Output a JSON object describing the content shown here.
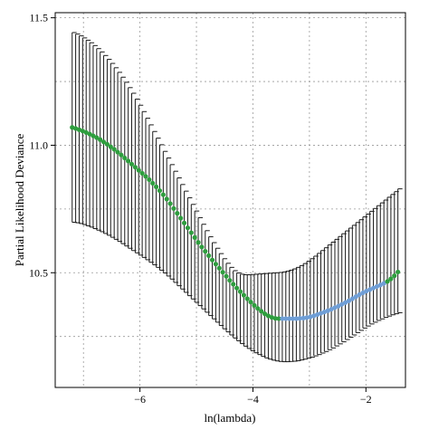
{
  "chart_data": {
    "type": "scatter",
    "title": "",
    "xlabel": "ln(lambda)",
    "ylabel": "Partial Likelihood Deviance",
    "xlim": [
      -7.5,
      -1.3
    ],
    "ylim": [
      10.05,
      11.52
    ],
    "x_ticks": [
      -6,
      -4,
      -2
    ],
    "x_tick_labels": [
      "−6",
      "−4",
      "−2"
    ],
    "x_minor_grid": [
      -7,
      -5,
      -3
    ],
    "y_ticks": [
      10.5,
      11.0,
      11.5
    ],
    "y_tick_labels": [
      "10.5",
      "11.0",
      "11.5"
    ],
    "y_minor_grid": [
      10.25,
      10.75,
      11.25
    ],
    "grid": true,
    "colors": {
      "green_points": "#2e9e3e",
      "blue_points": "#6f9ed6",
      "error_bars": "#1a1a1a"
    },
    "series": [
      {
        "x": [
          -7.2,
          -7.138,
          -7.076,
          -7.014,
          -6.952,
          -6.89,
          -6.828,
          -6.766,
          -6.704,
          -6.642,
          -6.58,
          -6.518,
          -6.456,
          -6.394,
          -6.332,
          -6.27,
          -6.208,
          -6.146,
          -6.084,
          -6.022,
          -5.96,
          -5.898,
          -5.836,
          -5.774,
          -5.712,
          -5.65,
          -5.588,
          -5.526,
          -5.464,
          -5.402,
          -5.34,
          -5.278,
          -5.216,
          -5.154,
          -5.092,
          -5.03,
          -4.968,
          -4.906,
          -4.844,
          -4.782,
          -4.72,
          -4.658,
          -4.596,
          -4.534,
          -4.472,
          -4.41,
          -4.348,
          -4.286,
          -4.224,
          -4.162,
          -4.1,
          -4.038,
          -3.976,
          -3.914,
          -3.852,
          -3.79,
          -3.728,
          -3.666,
          -3.604,
          -3.542,
          -3.48,
          -3.418,
          -3.356,
          -3.294,
          -3.232,
          -3.17,
          -3.108,
          -3.046,
          -2.984,
          -2.922,
          -2.86,
          -2.798,
          -2.736,
          -2.674,
          -2.612,
          -2.55,
          -2.488,
          -2.426,
          -2.364,
          -2.302,
          -2.24,
          -2.178,
          -2.116,
          -2.054,
          -1.992,
          -1.93,
          -1.868,
          -1.806,
          -1.744,
          -1.682,
          -1.62,
          -1.558,
          -1.496,
          -1.434
        ],
        "y": [
          11.07,
          11.066,
          11.061,
          11.056,
          11.05,
          11.044,
          11.037,
          11.03,
          11.022,
          11.013,
          11.004,
          10.994,
          10.984,
          10.973,
          10.962,
          10.95,
          10.938,
          10.926,
          10.914,
          10.902,
          10.89,
          10.878,
          10.865,
          10.851,
          10.837,
          10.822,
          10.806,
          10.789,
          10.771,
          10.752,
          10.733,
          10.714,
          10.695,
          10.676,
          10.657,
          10.638,
          10.619,
          10.601,
          10.584,
          10.567,
          10.55,
          10.534,
          10.518,
          10.502,
          10.486,
          10.47,
          10.455,
          10.44,
          10.426,
          10.412,
          10.398,
          10.385,
          10.372,
          10.36,
          10.349,
          10.339,
          10.331,
          10.325,
          10.321,
          10.32,
          10.32,
          10.32,
          10.32,
          10.32,
          10.32,
          10.321,
          10.322,
          10.324,
          10.327,
          10.331,
          10.336,
          10.341,
          10.346,
          10.351,
          10.357,
          10.363,
          10.369,
          10.376,
          10.383,
          10.39,
          10.398,
          10.406,
          10.414,
          10.421,
          10.428,
          10.434,
          10.44,
          10.446,
          10.452,
          10.458,
          10.466,
          10.476,
          10.488,
          10.503
        ],
        "lower": [
          10.698,
          10.696,
          10.693,
          10.689,
          10.684,
          10.679,
          10.673,
          10.667,
          10.661,
          10.654,
          10.647,
          10.639,
          10.631,
          10.623,
          10.614,
          10.605,
          10.596,
          10.587,
          10.578,
          10.569,
          10.56,
          10.551,
          10.541,
          10.531,
          10.521,
          10.51,
          10.499,
          10.487,
          10.475,
          10.462,
          10.449,
          10.436,
          10.423,
          10.41,
          10.397,
          10.384,
          10.371,
          10.358,
          10.345,
          10.332,
          10.319,
          10.306,
          10.293,
          10.28,
          10.268,
          10.256,
          10.244,
          10.233,
          10.222,
          10.212,
          10.203,
          10.194,
          10.186,
          10.179,
          10.172,
          10.166,
          10.161,
          10.157,
          10.154,
          10.152,
          10.151,
          10.151,
          10.152,
          10.153,
          10.155,
          10.158,
          10.161,
          10.165,
          10.169,
          10.174,
          10.179,
          10.185,
          10.191,
          10.198,
          10.205,
          10.213,
          10.221,
          10.229,
          10.238,
          10.247,
          10.256,
          10.265,
          10.274,
          10.283,
          10.291,
          10.299,
          10.306,
          10.313,
          10.319,
          10.325,
          10.33,
          10.335,
          10.339,
          10.343
        ],
        "upper": [
          11.442,
          11.436,
          11.429,
          11.421,
          11.412,
          11.402,
          11.391,
          11.379,
          11.366,
          11.352,
          11.337,
          11.321,
          11.304,
          11.286,
          11.267,
          11.247,
          11.226,
          11.204,
          11.181,
          11.157,
          11.132,
          11.106,
          11.08,
          11.054,
          11.028,
          11.002,
          10.976,
          10.95,
          10.924,
          10.898,
          10.872,
          10.846,
          10.82,
          10.794,
          10.768,
          10.742,
          10.716,
          10.69,
          10.665,
          10.641,
          10.618,
          10.596,
          10.575,
          10.555,
          10.537,
          10.521,
          10.508,
          10.499,
          10.494,
          10.492,
          10.492,
          10.493,
          10.494,
          10.495,
          10.496,
          10.497,
          10.498,
          10.499,
          10.5,
          10.501,
          10.503,
          10.506,
          10.51,
          10.515,
          10.521,
          10.528,
          10.536,
          10.545,
          10.555,
          10.565,
          10.576,
          10.587,
          10.598,
          10.609,
          10.62,
          10.631,
          10.642,
          10.653,
          10.664,
          10.675,
          10.686,
          10.697,
          10.708,
          10.719,
          10.73,
          10.741,
          10.752,
          10.763,
          10.774,
          10.785,
          10.796,
          10.807,
          10.818,
          10.829
        ],
        "point_color_groups": {
          "green": [
            0,
            59
          ],
          "blue": [
            60,
            89
          ],
          "green_end": [
            90,
            93
          ]
        }
      }
    ]
  }
}
